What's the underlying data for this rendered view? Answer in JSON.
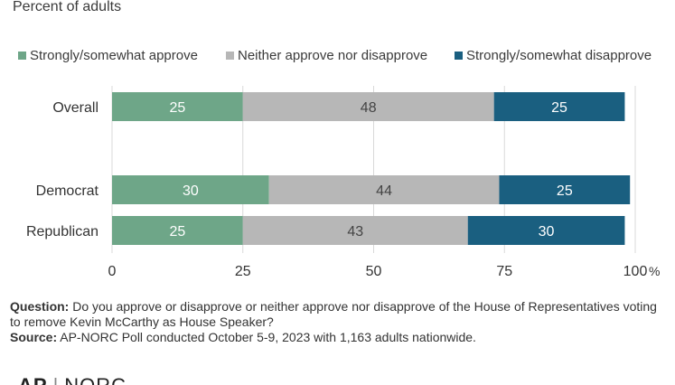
{
  "subtitle": "Percent of adults",
  "colors": {
    "approve": "#6ea688",
    "neither": "#b7b7b7",
    "disapprove": "#1a5f80",
    "bar_text_dark": "#444444",
    "bar_text_light": "#ffffff"
  },
  "chart_data": {
    "type": "bar",
    "orientation": "horizontal",
    "stacked": true,
    "categories": [
      "Overall",
      "Democrat",
      "Republican"
    ],
    "series": [
      {
        "name": "Strongly/somewhat approve",
        "values": [
          25,
          30,
          25
        ]
      },
      {
        "name": "Neither approve nor disapprove",
        "values": [
          48,
          44,
          43
        ]
      },
      {
        "name": "Strongly/somewhat disapprove",
        "values": [
          25,
          25,
          30
        ]
      }
    ],
    "xlim": [
      0,
      100
    ],
    "xticks": [
      "0",
      "25",
      "50",
      "75",
      "100"
    ],
    "xunit": "%",
    "grid": true,
    "legend": "top"
  },
  "notes": {
    "question_label": "Question:",
    "question_text": " Do you approve or disapprove or neither approve nor disapprove of the House of Representatives voting to remove Kevin McCarthy as House Speaker?",
    "source_label": "Source:",
    "source_text": " AP-NORC Poll conducted October 5-9, 2023 with 1,163 adults nationwide."
  },
  "logo": {
    "left": "AP",
    "right": "NORC"
  }
}
